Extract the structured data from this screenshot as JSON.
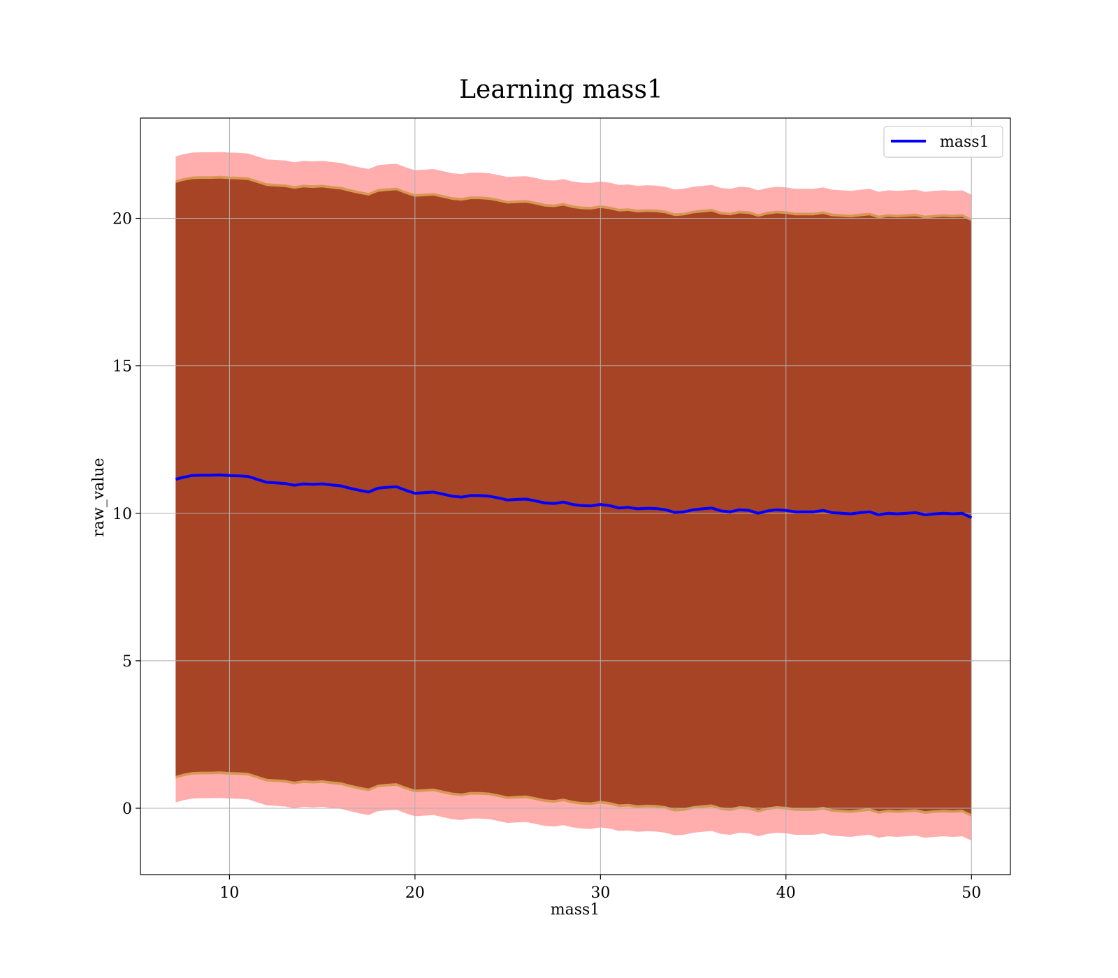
{
  "chart_data": {
    "type": "line",
    "title": "Learning mass1",
    "xlabel": "mass1",
    "ylabel": "raw_value",
    "xlim": [
      5.2,
      52.1
    ],
    "ylim": [
      -2.25,
      23.4
    ],
    "xticks": [
      10,
      20,
      30,
      40,
      50
    ],
    "yticks": [
      0,
      5,
      10,
      15,
      20
    ],
    "grid": true,
    "legend": {
      "placement": "top-right",
      "entries": [
        "mass1"
      ]
    },
    "colors": {
      "line": "#0000ff",
      "outer_band": "#ff0000",
      "inner_band": "#800000",
      "edge": "#b8860b",
      "grid": "#b0b0b0"
    },
    "series": [
      {
        "name": "mass1",
        "x": [
          7.1,
          7.5,
          8,
          8.5,
          9,
          9.5,
          10,
          10.5,
          11,
          11.5,
          12,
          12.5,
          13,
          13.5,
          14,
          14.5,
          15,
          15.5,
          16,
          16.5,
          17,
          17.5,
          18,
          18.5,
          19,
          19.5,
          20,
          20.5,
          21,
          21.5,
          22,
          22.5,
          23,
          23.5,
          24,
          24.5,
          25,
          25.5,
          26,
          26.5,
          27,
          27.5,
          28,
          28.5,
          29,
          29.5,
          30,
          30.5,
          31,
          31.5,
          32,
          32.5,
          33,
          33.5,
          34,
          34.5,
          35,
          35.5,
          36,
          36.5,
          37,
          37.5,
          38,
          38.5,
          39,
          39.5,
          40,
          40.5,
          41,
          41.5,
          42,
          42.5,
          43,
          43.5,
          44,
          44.5,
          45,
          45.5,
          46,
          46.5,
          47,
          47.5,
          48,
          48.5,
          49,
          49.5,
          50
        ],
        "y": [
          11.15,
          11.22,
          11.28,
          11.29,
          11.29,
          11.3,
          11.28,
          11.27,
          11.25,
          11.15,
          11.05,
          11.03,
          11.01,
          10.95,
          11.0,
          10.98,
          11.0,
          10.96,
          10.93,
          10.85,
          10.78,
          10.72,
          10.85,
          10.88,
          10.9,
          10.78,
          10.68,
          10.7,
          10.72,
          10.65,
          10.58,
          10.55,
          10.6,
          10.6,
          10.58,
          10.52,
          10.45,
          10.47,
          10.48,
          10.42,
          10.35,
          10.33,
          10.38,
          10.3,
          10.26,
          10.25,
          10.3,
          10.26,
          10.18,
          10.2,
          10.15,
          10.17,
          10.16,
          10.12,
          10.03,
          10.05,
          10.12,
          10.15,
          10.18,
          10.08,
          10.05,
          10.12,
          10.1,
          10.0,
          10.08,
          10.12,
          10.1,
          10.05,
          10.05,
          10.05,
          10.1,
          10.02,
          10.0,
          9.98,
          10.02,
          10.05,
          9.95,
          10.0,
          9.98,
          10.0,
          10.02,
          9.95,
          9.98,
          10.0,
          9.98,
          10.0,
          9.85
        ]
      }
    ]
  }
}
